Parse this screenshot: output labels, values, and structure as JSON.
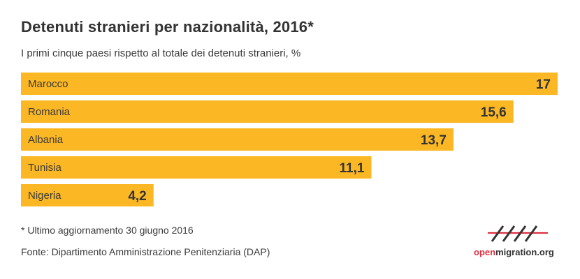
{
  "header": {
    "title": "Detenuti stranieri per nazionalità, 2016*",
    "subtitle": "I primi cinque paesi rispetto al totale dei detenuti stranieri, %"
  },
  "chart_data": {
    "type": "bar",
    "orientation": "horizontal",
    "categories": [
      "Marocco",
      "Romania",
      "Albania",
      "Tunisia",
      "Nigeria"
    ],
    "values": [
      17,
      15.6,
      13.7,
      11.1,
      4.2
    ],
    "value_labels": [
      "17",
      "15,6",
      "13,7",
      "11,1",
      "4,2"
    ],
    "bar_color": "#fbb724",
    "xlim": [
      0,
      17
    ],
    "grid": false,
    "legend": false
  },
  "footer": {
    "footnote": "* Ultimo aggiornamento 30 giugno 2016",
    "source": "Fonte: Dipartimento Amministrazione Penitenziaria (DAP)"
  },
  "logo": {
    "text_accent": "open",
    "text_rest": "migration.org",
    "accent_color": "#e03040"
  }
}
